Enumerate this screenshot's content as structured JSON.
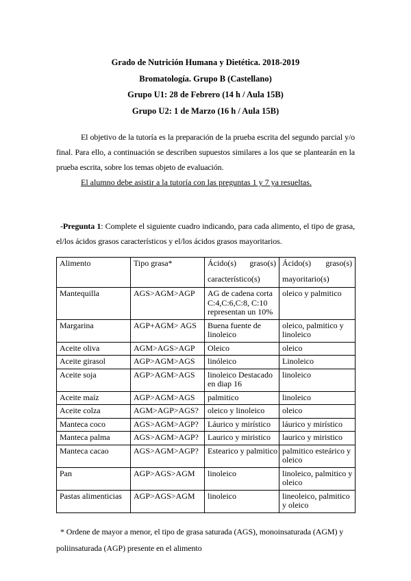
{
  "document": {
    "header_lines": [
      "Grado de Nutrición Humana y Dietética. 2018-2019",
      "Bromatología. Grupo B (Castellano)",
      "Grupo U1: 28 de Febrero (14 h / Aula 15B)",
      "Grupo U2: 1 de Marzo (16 h / Aula 15B)"
    ],
    "intro": {
      "paragraph": "El objetivo de la tutoría es la preparación de la prueba escrita del segundo  parcial y/o final. Para ello, a continuación se describen supuestos similares a los que se plantearán en la prueba escrita, sobre los temas objeto de evaluación.",
      "underlined_note": "El alumno debe asistir a la tutoría con las preguntas 1 y 7 ya resueltas."
    },
    "question1": {
      "label": "-Pregunta 1",
      "text": ": Complete el siguiente cuadro indicando, para cada alimento, el tipo de grasa, el/los ácidos grasos característicos y el/los ácidos grasos mayoritarios."
    },
    "table": {
      "headers": {
        "col1": "Alimento",
        "col2": "Tipo grasa*",
        "col3_word1": "Ácido(s)",
        "col3_word2": "graso(s)",
        "col3_line2": "característico(s)",
        "col4_word1": "Ácido(s)",
        "col4_word2": "graso(s)",
        "col4_line2": "mayoritario(s)"
      },
      "rows": [
        [
          "Mantequilla",
          "AGS>AGM>AGP",
          "AG de cadena corta C:4,C:6,C:8, C:10 representan un 10%",
          "oleico y palmitico"
        ],
        [
          "Margarina",
          "AGP+AGM> AGS",
          "Buena fuente de linoleico",
          "oleico, palmitico y linoleico"
        ],
        [
          "Aceite oliva",
          "AGM>AGS>AGP",
          "Oleico",
          "oleico"
        ],
        [
          "Aceite girasol",
          "AGP>AGM>AGS",
          "linóleico",
          "Linoleico"
        ],
        [
          "Aceite soja",
          "AGP>AGM>AGS",
          "linoleico Destacado en diap 16",
          "linoleico"
        ],
        [
          "Aceite maíz",
          "AGP>AGM>AGS",
          "palmitico",
          "linoleico"
        ],
        [
          "Aceite colza",
          "AGM>AGP>AGS?",
          "oleico y linoleico",
          "oleico"
        ],
        [
          "Manteca coco",
          "AGS>AGM>AGP?",
          "Láurico y mirístico",
          "láurico y mirístico"
        ],
        [
          "Manteca palma",
          "AGS>AGM>AGP?",
          "Laurico y miristico",
          "laurico y miristico"
        ],
        [
          "Manteca cacao",
          "AGS>AGM>AGP?",
          "Estearico y palmitico",
          "palmitico esteárico y oleico"
        ],
        [
          "Pan",
          "AGP>AGS>AGM",
          "linoleico",
          "linoleico, palmitico y oleico"
        ],
        [
          "Pastas alimenticias",
          "AGP>AGS>AGM",
          "linoleico",
          "lineoleico, palmitico y oleico"
        ]
      ]
    },
    "footnote": "* Ordene de mayor a menor, el tipo de grasa saturada (AGS), monoinsaturada (AGM) y poliinsaturada (AGP) presente en el alimento"
  }
}
